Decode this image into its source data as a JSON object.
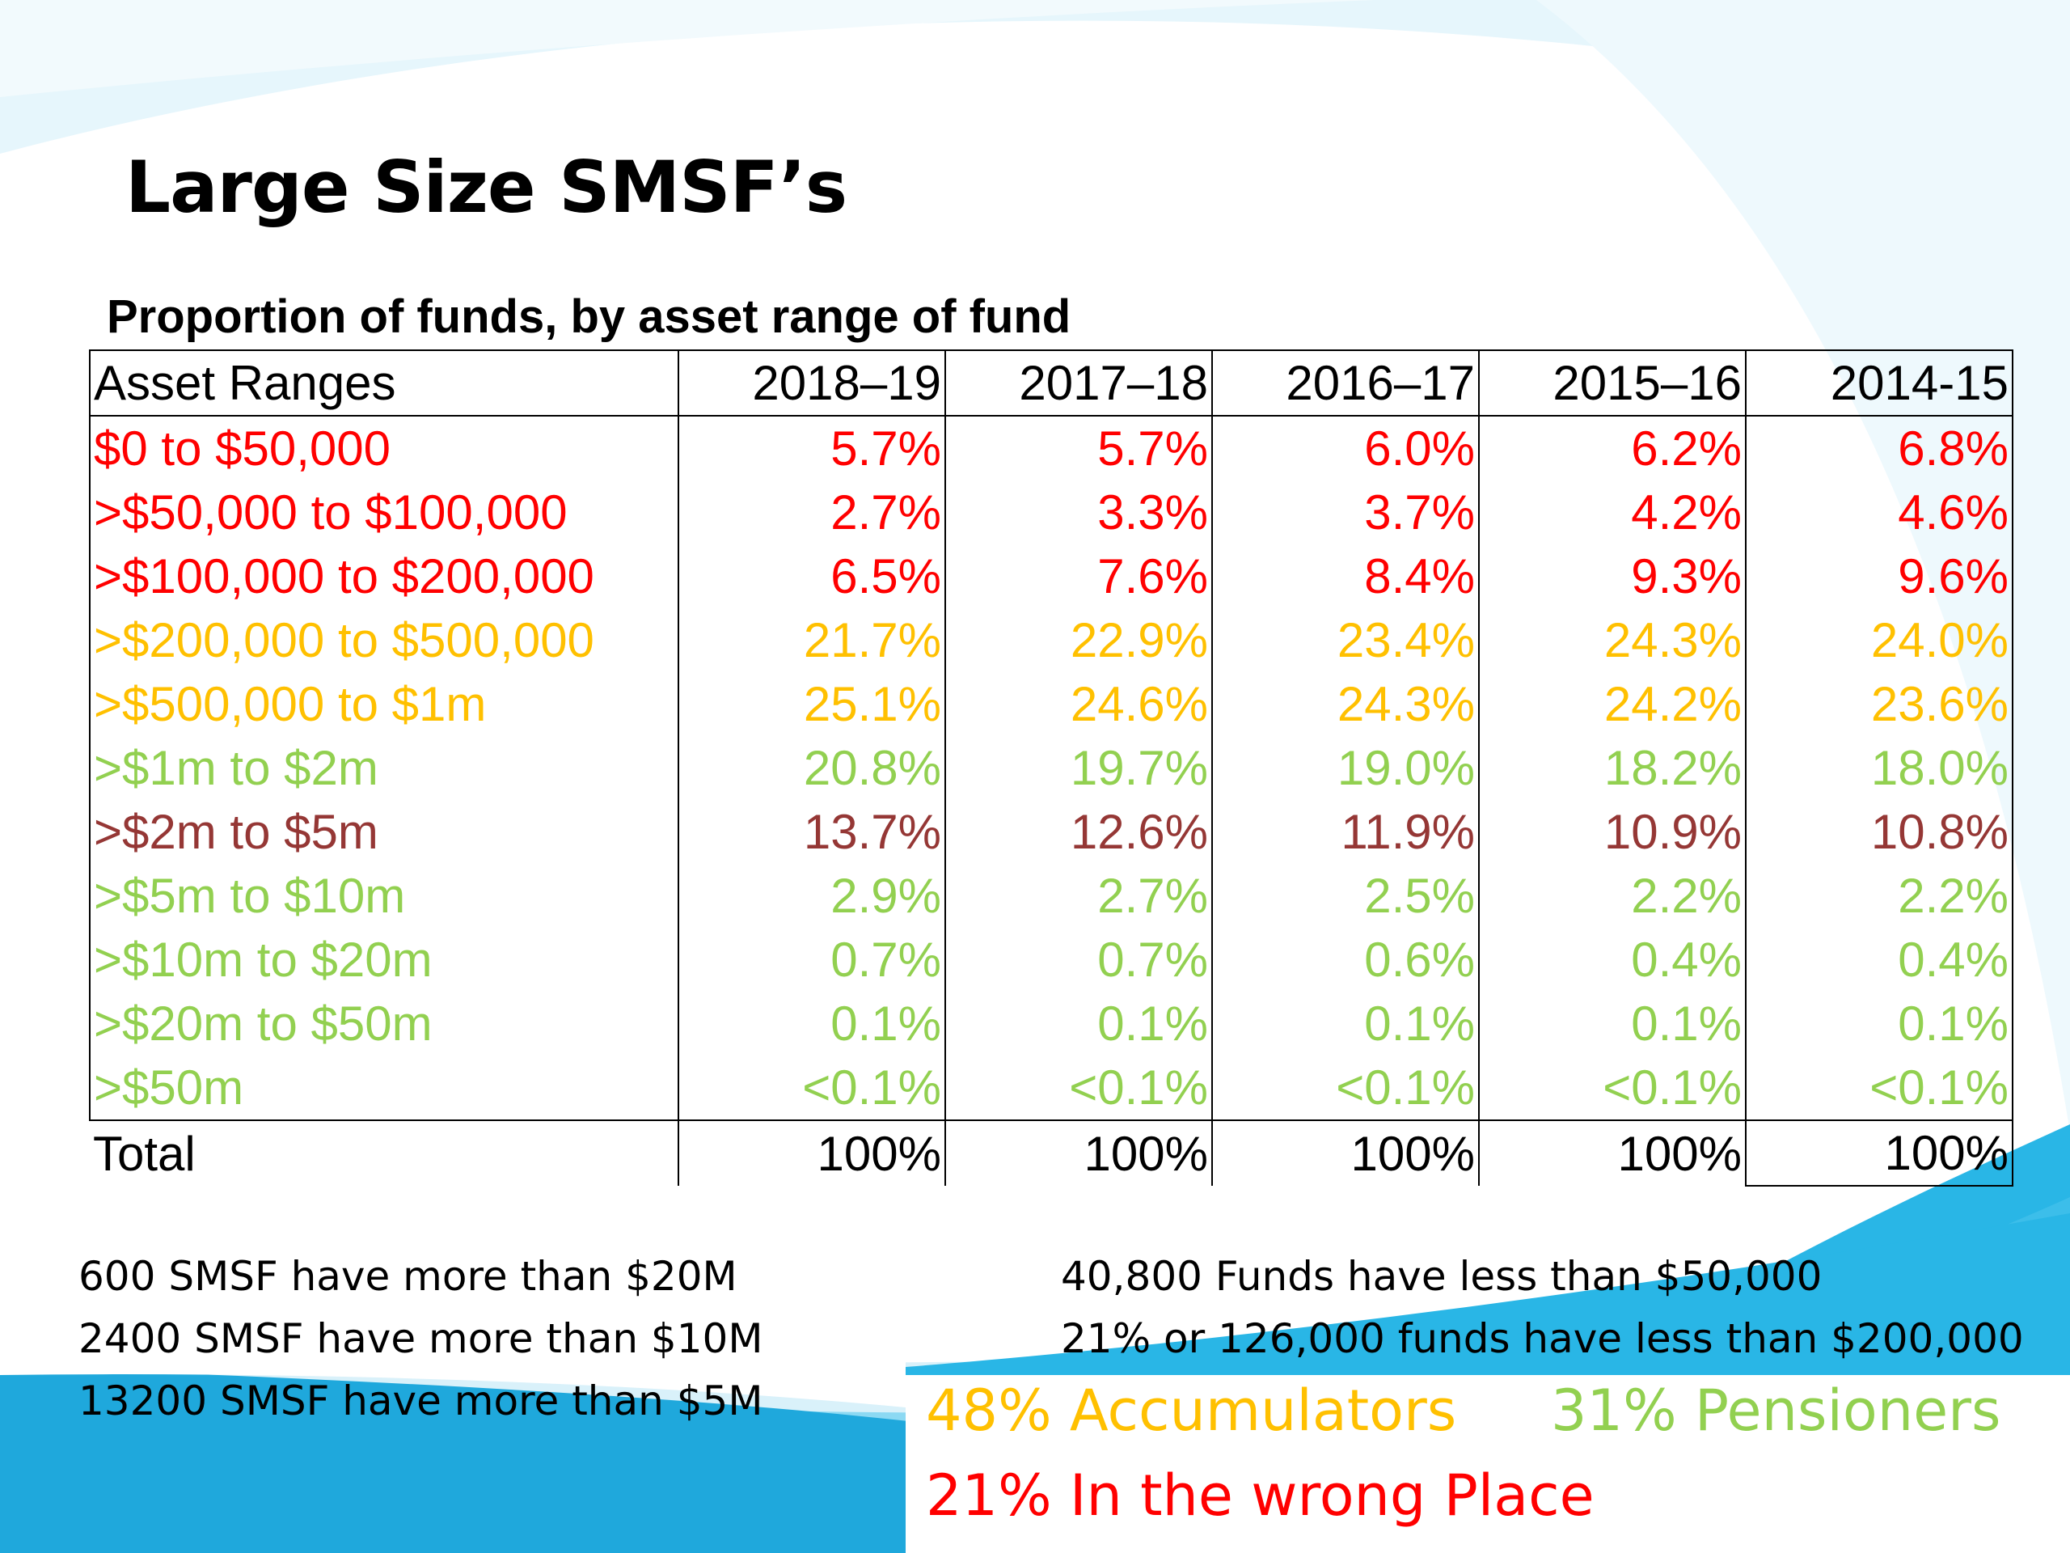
{
  "title": "Large Size SMSF’s",
  "table": {
    "caption": "Proportion of funds, by asset range of fund",
    "header": [
      "Asset Ranges",
      "2018–19",
      "2017–18",
      "2016–17",
      "2015–16",
      "2014-15"
    ],
    "rows": [
      {
        "label": "$0 to $50,000",
        "values": [
          "5.7%",
          "5.7%",
          "6.0%",
          "6.2%",
          "6.8%"
        ],
        "color": "#ff0000"
      },
      {
        "label": ">$50,000 to $100,000",
        "values": [
          "2.7%",
          "3.3%",
          "3.7%",
          "4.2%",
          "4.6%"
        ],
        "color": "#ff0000"
      },
      {
        "label": ">$100,000 to $200,000",
        "values": [
          "6.5%",
          "7.6%",
          "8.4%",
          "9.3%",
          "9.6%"
        ],
        "color": "#ff0000"
      },
      {
        "label": ">$200,000 to $500,000",
        "values": [
          "21.7%",
          "22.9%",
          "23.4%",
          "24.3%",
          "24.0%"
        ],
        "color": "#ffc000"
      },
      {
        "label": ">$500,000 to $1m",
        "values": [
          "25.1%",
          "24.6%",
          "24.3%",
          "24.2%",
          "23.6%"
        ],
        "color": "#ffc000"
      },
      {
        "label": ">$1m to $2m",
        "values": [
          "20.8%",
          "19.7%",
          "19.0%",
          "18.2%",
          "18.0%"
        ],
        "color": "#92d050"
      },
      {
        "label": ">$2m to $5m",
        "values": [
          "13.7%",
          "12.6%",
          "11.9%",
          "10.9%",
          "10.8%"
        ],
        "color": "#953735"
      },
      {
        "label": ">$5m to $10m",
        "values": [
          "2.9%",
          "2.7%",
          "2.5%",
          "2.2%",
          "2.2%"
        ],
        "color": "#92d050"
      },
      {
        "label": ">$10m to $20m",
        "values": [
          "0.7%",
          "0.7%",
          "0.6%",
          "0.4%",
          "0.4%"
        ],
        "color": "#92d050"
      },
      {
        "label": ">$20m to $50m",
        "values": [
          "0.1%",
          "0.1%",
          "0.1%",
          "0.1%",
          "0.1%"
        ],
        "color": "#92d050"
      },
      {
        "label": ">$50m",
        "values": [
          "<0.1%",
          "<0.1%",
          "<0.1%",
          "<0.1%",
          "<0.1%"
        ],
        "color": "#92d050"
      }
    ],
    "total": {
      "label": "Total",
      "values": [
        "100%",
        "100%",
        "100%",
        "100%",
        "100%"
      ],
      "color": "#000000"
    }
  },
  "notes_left": [
    "600 SMSF have more than $20M",
    "2400 SMSF have more than $10M",
    "13200 SMSF have more than $5M"
  ],
  "notes_right": [
    "40,800 Funds have less than $50,000",
    "21% or 126,000 funds have less than $200,000"
  ],
  "highlights": {
    "accumulators": "48% Accumulators",
    "pensioners": "31% Pensioners",
    "wrong_place": "21% In the wrong Place"
  },
  "colors": {
    "red": "#ff0000",
    "amber": "#ffc000",
    "green": "#92d050",
    "maroon": "#953735",
    "wave_blue": "#29b6e6",
    "wave_light": "#dff3fb"
  }
}
